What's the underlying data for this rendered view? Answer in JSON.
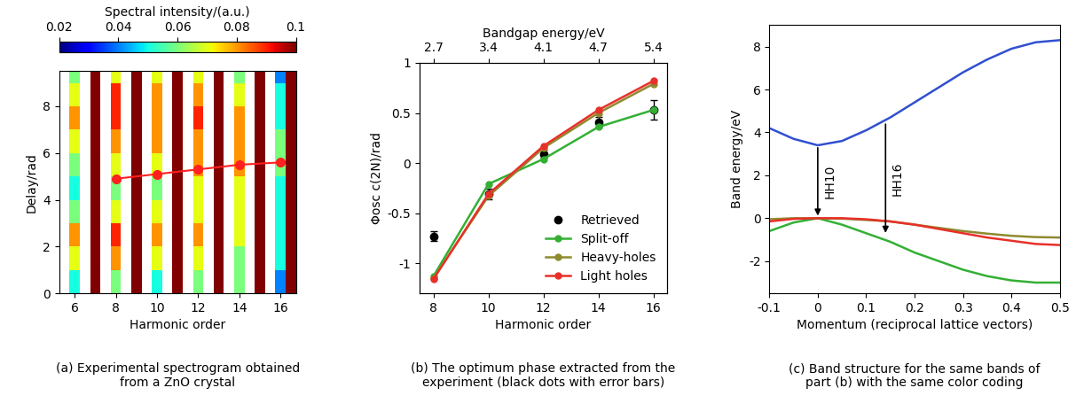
{
  "chart_data": [
    {
      "type": "heatmap",
      "caption": "(a) Experimental spectrogram obtained\nfrom a ZnO crystal",
      "x_label": "Harmonic order",
      "y_label": "Delay/rad",
      "xlim": [
        5.25,
        16.75
      ],
      "xticks": [
        6,
        8,
        10,
        12,
        14,
        16
      ],
      "ylim": [
        0,
        9.5
      ],
      "yticks": [
        0,
        2,
        4,
        6,
        8
      ],
      "colorbar_label": "Spectral intensity/(a.u.)",
      "colorbar_lim": [
        0.02,
        0.1
      ],
      "colorbar_ticks": [
        0.02,
        0.04,
        0.06,
        0.08,
        0.1
      ],
      "x_edges": [
        5.25,
        5.75,
        6.25,
        6.75,
        7.25,
        7.75,
        8.25,
        8.75,
        9.25,
        9.75,
        10.25,
        10.75,
        11.25,
        11.75,
        12.25,
        12.75,
        13.25,
        13.75,
        14.25,
        14.75,
        15.25,
        15.75,
        16.25,
        16.75
      ],
      "y_edges": [
        0,
        1,
        2,
        3,
        4,
        5,
        6,
        7,
        8,
        9,
        9.5
      ],
      "cells": [
        [
          0.01,
          0.05,
          0.01,
          0.1,
          0.01,
          0.06,
          0.01,
          0.1,
          0.01,
          0.05,
          0.01,
          0.1,
          0.01,
          0.06,
          0.01,
          0.1,
          0.01,
          0.06,
          0.01,
          0.1,
          0.01,
          0.04,
          0.1
        ],
        [
          0.01,
          0.07,
          0.01,
          0.1,
          0.01,
          0.08,
          0.01,
          0.1,
          0.01,
          0.07,
          0.01,
          0.1,
          0.01,
          0.07,
          0.01,
          0.1,
          0.01,
          0.06,
          0.01,
          0.1,
          0.01,
          0.05,
          0.1
        ],
        [
          0.01,
          0.08,
          0.01,
          0.1,
          0.01,
          0.09,
          0.01,
          0.1,
          0.01,
          0.08,
          0.01,
          0.1,
          0.01,
          0.08,
          0.01,
          0.1,
          0.01,
          0.07,
          0.01,
          0.1,
          0.01,
          0.05,
          0.1
        ],
        [
          0.01,
          0.06,
          0.01,
          0.1,
          0.01,
          0.07,
          0.01,
          0.1,
          0.01,
          0.07,
          0.01,
          0.1,
          0.01,
          0.07,
          0.01,
          0.1,
          0.01,
          0.07,
          0.01,
          0.1,
          0.01,
          0.05,
          0.1
        ],
        [
          0.01,
          0.05,
          0.01,
          0.1,
          0.01,
          0.06,
          0.01,
          0.1,
          0.01,
          0.06,
          0.01,
          0.1,
          0.01,
          0.07,
          0.01,
          0.1,
          0.01,
          0.07,
          0.01,
          0.1,
          0.01,
          0.05,
          0.1
        ],
        [
          0.01,
          0.06,
          0.01,
          0.1,
          0.01,
          0.07,
          0.01,
          0.1,
          0.01,
          0.07,
          0.01,
          0.1,
          0.01,
          0.08,
          0.01,
          0.1,
          0.01,
          0.08,
          0.01,
          0.1,
          0.01,
          0.06,
          0.1
        ],
        [
          0.01,
          0.07,
          0.01,
          0.1,
          0.01,
          0.08,
          0.01,
          0.1,
          0.01,
          0.08,
          0.01,
          0.1,
          0.01,
          0.08,
          0.01,
          0.1,
          0.01,
          0.08,
          0.01,
          0.1,
          0.01,
          0.06,
          0.1
        ],
        [
          0.01,
          0.08,
          0.01,
          0.1,
          0.01,
          0.09,
          0.01,
          0.1,
          0.01,
          0.08,
          0.01,
          0.1,
          0.01,
          0.09,
          0.01,
          0.1,
          0.01,
          0.08,
          0.01,
          0.1,
          0.01,
          0.05,
          0.1
        ],
        [
          0.01,
          0.07,
          0.01,
          0.1,
          0.01,
          0.09,
          0.01,
          0.1,
          0.01,
          0.08,
          0.01,
          0.1,
          0.01,
          0.08,
          0.01,
          0.1,
          0.01,
          0.07,
          0.01,
          0.1,
          0.01,
          0.05,
          0.1
        ],
        [
          0.01,
          0.06,
          0.01,
          0.1,
          0.01,
          0.07,
          0.01,
          0.1,
          0.01,
          0.07,
          0.01,
          0.1,
          0.01,
          0.07,
          0.01,
          0.1,
          0.01,
          0.06,
          0.01,
          0.1,
          0.01,
          0.04,
          0.1
        ]
      ],
      "series": [
        {
          "x": [
            8,
            10,
            12,
            14,
            16
          ],
          "values": [
            4.9,
            5.1,
            5.3,
            5.5,
            5.6
          ],
          "color": "#ff2020",
          "marker": "o"
        }
      ]
    },
    {
      "type": "line",
      "caption": "(b) The optimum phase extracted from the\nexperiment (black dots with error bars)",
      "x_label": "Harmonic order",
      "y_label": "Φosc c(2N)/rad",
      "x2_label": "Bandgap energy/eV",
      "xlim": [
        7.5,
        16.5
      ],
      "xticks": [
        8,
        10,
        12,
        14,
        16
      ],
      "x2ticks": [
        {
          "value": 8,
          "label": "2.7"
        },
        {
          "value": 10,
          "label": "3.4"
        },
        {
          "value": 12,
          "label": "4.1"
        },
        {
          "value": 14,
          "label": "4.7"
        },
        {
          "value": 16,
          "label": "5.4"
        }
      ],
      "ylim": [
        -1.3,
        1
      ],
      "yticks": [
        -1,
        -0.5,
        0,
        0.5,
        1
      ],
      "legend": "lower right",
      "series": [
        {
          "name": "Retrieved",
          "type": "scatter",
          "color": "#000000",
          "marker": "o",
          "x": [
            8,
            10,
            12,
            14,
            16
          ],
          "values": [
            -0.73,
            -0.31,
            0.09,
            0.41,
            0.53
          ],
          "errors": [
            0.05,
            0.05,
            0.04,
            0.05,
            0.1
          ]
        },
        {
          "name": "Split-off",
          "type": "line",
          "color": "#33b033",
          "marker": "o",
          "x": [
            8,
            10,
            12,
            14,
            16
          ],
          "values": [
            -1.13,
            -0.21,
            0.04,
            0.36,
            0.53
          ]
        },
        {
          "name": "Heavy-holes",
          "type": "line",
          "color": "#8f8a2e",
          "marker": "o",
          "x": [
            8,
            10,
            12,
            14,
            16
          ],
          "values": [
            -1.15,
            -0.33,
            0.15,
            0.5,
            0.79
          ]
        },
        {
          "name": "Light holes",
          "type": "line",
          "color": "#e8302a",
          "marker": "o",
          "x": [
            8,
            10,
            12,
            14,
            16
          ],
          "values": [
            -1.16,
            -0.31,
            0.17,
            0.53,
            0.82
          ]
        }
      ]
    },
    {
      "type": "line",
      "caption": "(c) Band structure for the same bands of\npart (b) with the same color coding",
      "x_label": "Momentum (reciprocal lattice vectors)",
      "y_label": "Band energy/eV",
      "xlim": [
        -0.1,
        0.5
      ],
      "xticks": [
        -0.1,
        0,
        0.1,
        0.2,
        0.3,
        0.4,
        0.5
      ],
      "ylim": [
        -3.5,
        9
      ],
      "yticks": [
        -2,
        0,
        2,
        4,
        6,
        8
      ],
      "series": [
        {
          "color": "#3050d0",
          "x": [
            -0.1,
            -0.05,
            0,
            0.05,
            0.1,
            0.15,
            0.2,
            0.25,
            0.3,
            0.35,
            0.4,
            0.45,
            0.5
          ],
          "values": [
            4.2,
            3.7,
            3.4,
            3.6,
            4.1,
            4.7,
            5.4,
            6.1,
            6.8,
            7.4,
            7.9,
            8.2,
            8.3
          ]
        },
        {
          "color": "#33b033",
          "x": [
            -0.1,
            -0.05,
            0,
            0.05,
            0.1,
            0.15,
            0.2,
            0.25,
            0.3,
            0.35,
            0.4,
            0.45,
            0.5
          ],
          "values": [
            -0.6,
            -0.2,
            0,
            -0.3,
            -0.7,
            -1.1,
            -1.6,
            -2.0,
            -2.4,
            -2.7,
            -2.9,
            -3.0,
            -3.0
          ]
        },
        {
          "color": "#8f8a2e",
          "x": [
            -0.1,
            -0.05,
            0,
            0.05,
            0.1,
            0.15,
            0.2,
            0.25,
            0.3,
            0.35,
            0.4,
            0.45,
            0.5
          ],
          "values": [
            -0.05,
            0,
            0,
            -0.02,
            -0.08,
            -0.15,
            -0.3,
            -0.45,
            -0.6,
            -0.72,
            -0.82,
            -0.88,
            -0.9
          ]
        },
        {
          "color": "#e8302a",
          "x": [
            -0.1,
            -0.05,
            0,
            0.05,
            0.1,
            0.15,
            0.2,
            0.25,
            0.3,
            0.35,
            0.4,
            0.45,
            0.5
          ],
          "values": [
            -0.15,
            -0.03,
            0,
            0,
            -0.05,
            -0.15,
            -0.3,
            -0.5,
            -0.7,
            -0.9,
            -1.05,
            -1.2,
            -1.25
          ]
        }
      ],
      "annotations": [
        {
          "text": "HH10",
          "x": 0,
          "y_start": 3.4,
          "y_end": 0
        },
        {
          "text": "HH16",
          "x": 0.14,
          "y_start": 4.5,
          "y_end": -0.8
        }
      ]
    }
  ]
}
